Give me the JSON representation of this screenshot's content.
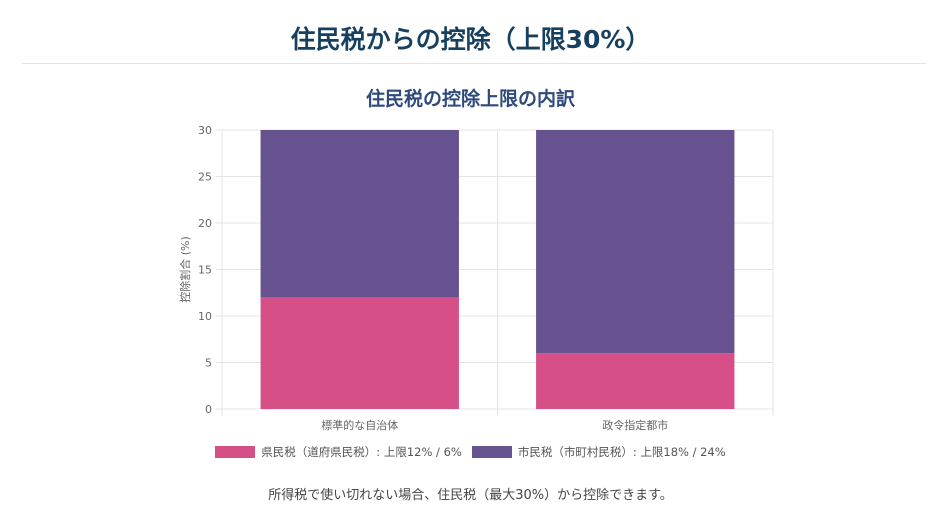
{
  "page": {
    "title": "住民税からの控除（上限30%）",
    "footnote": "所得税で使い切れない場合、住民税（最大30%）から控除できます。"
  },
  "colors": {
    "prefecture": "#d64f87",
    "municipal": "#66528f",
    "grid": "#e4e4e4",
    "axis_text": "#666666"
  },
  "chart_data": {
    "type": "bar",
    "stacked": true,
    "title": "住民税の控除上限の内訳",
    "xlabel": "",
    "ylabel": "控除割合 (%)",
    "ylim": [
      0,
      30
    ],
    "yticks": [
      0,
      5,
      10,
      15,
      20,
      25,
      30
    ],
    "categories": [
      "標準的な自治体",
      "政令指定都市"
    ],
    "series": [
      {
        "name": "県民税（道府県民税）: 上限12% / 6%",
        "values": [
          12,
          6
        ],
        "color": "#d64f87"
      },
      {
        "name": "市民税（市町村民税）: 上限18% / 24%",
        "values": [
          18,
          24
        ],
        "color": "#66528f"
      }
    ],
    "grid": true,
    "legend": "bottom"
  }
}
